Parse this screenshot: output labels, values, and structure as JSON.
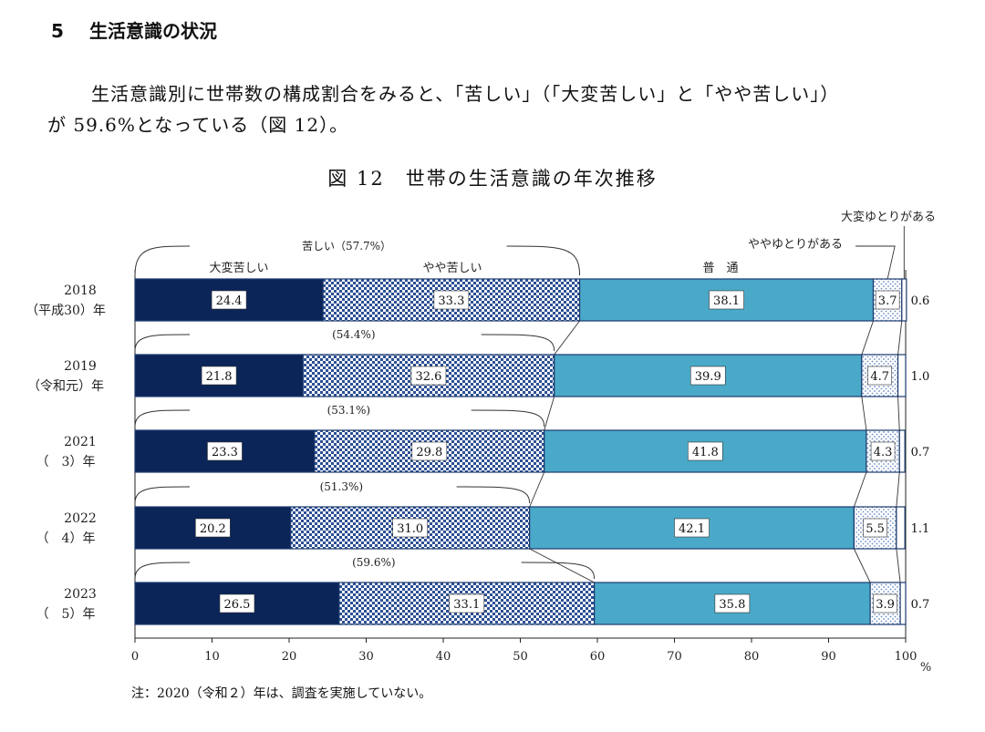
{
  "section": {
    "number": "5",
    "title": "生活意識の状況"
  },
  "paragraph": {
    "line1": "生活意識別に世帯数の構成割合をみると、「苦しい」（「大変苦しい」と「やや苦しい」）",
    "line2": "が 59.6%となっている（図 12）。"
  },
  "figure_title": "図 12　世帯の生活意識の年次推移",
  "note": "注：2020（令和２）年は、調査を実施していない。",
  "chart_data": {
    "type": "bar",
    "orientation": "horizontal",
    "stacked": true,
    "categories": [
      {
        "year": "2018",
        "era": "（平成30）年"
      },
      {
        "year": "2019",
        "era": "（令和元）年"
      },
      {
        "year": "2021",
        "era": "（　3）年"
      },
      {
        "year": "2022",
        "era": "（　4）年"
      },
      {
        "year": "2023",
        "era": "（　5）年"
      }
    ],
    "series": [
      {
        "name": "大変苦しい",
        "values": [
          24.4,
          21.8,
          23.3,
          20.2,
          26.5
        ],
        "color": "#0b2559"
      },
      {
        "name": "やや苦しい",
        "values": [
          33.3,
          32.6,
          29.8,
          31.0,
          33.1
        ],
        "color": "#2c4f93"
      },
      {
        "name": "普　通",
        "values": [
          38.1,
          39.9,
          41.8,
          42.1,
          35.8
        ],
        "color": "#4aa9c8"
      },
      {
        "name": "ややゆとりがある",
        "values": [
          3.7,
          4.7,
          4.3,
          5.5,
          3.9
        ],
        "color": "#8fb0d9"
      },
      {
        "name": "大変ゆとりがある",
        "values": [
          0.6,
          1.0,
          0.7,
          1.1,
          0.7
        ],
        "color": "#ffffff"
      }
    ],
    "kurushii_total_labels": [
      "苦しい（57.7%）",
      "(54.4%)",
      "(53.1%)",
      "(51.3%)",
      "(59.6%)"
    ],
    "xlim": [
      0,
      100
    ],
    "xticks": [
      0,
      10,
      20,
      30,
      40,
      50,
      60,
      70,
      80,
      90,
      100
    ],
    "xunit": "%",
    "grid": false
  }
}
